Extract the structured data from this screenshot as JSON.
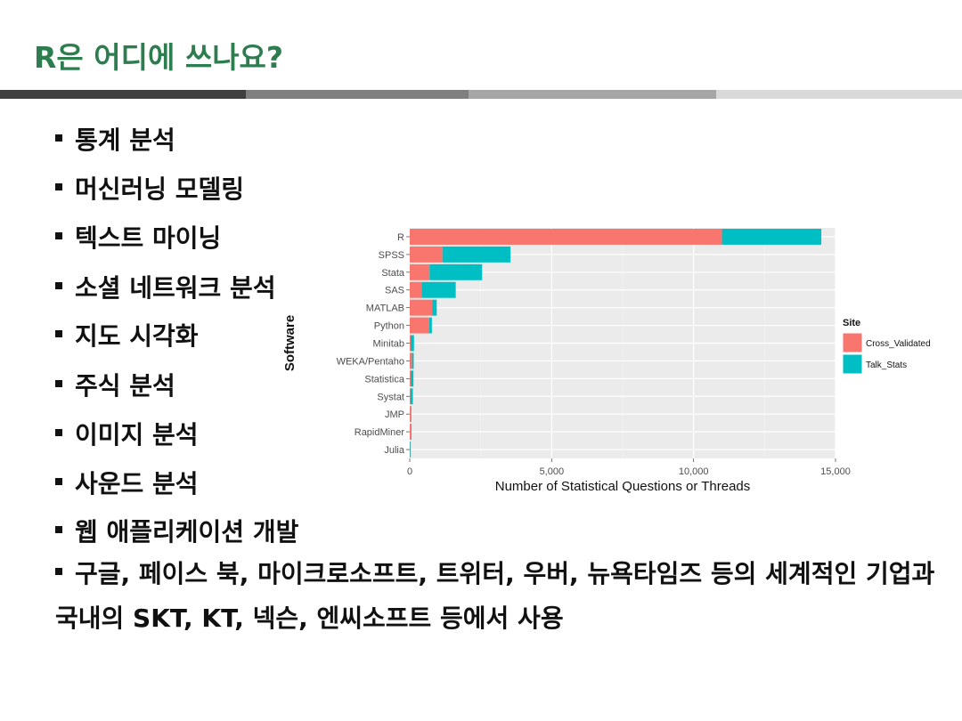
{
  "slide": {
    "title": "R은 어디에 쓰나요?",
    "bullets": [
      "통계 분석",
      "머신러닝 모델링",
      "텍스트 마이닝",
      "소셜 네트워크 분석",
      "지도 시각화",
      "주식 분석",
      "이미지 분석",
      "사운드 분석",
      "웹 애플리케이션 개발",
      "구글, 페이스 북, 마이크로소프트, 트위터, 우버, 뉴욕타임즈 등의 세계적인 기업과 국내의 SKT, KT, 넥슨, 엔씨소프트 등에서 사용"
    ],
    "divider_colors": [
      "#3f3f3f",
      "#7f7f7f",
      "#a6a6a6",
      "#d9d9d9"
    ]
  },
  "chart_data": {
    "type": "bar",
    "orientation": "horizontal",
    "stacked": true,
    "categories": [
      "R",
      "SPSS",
      "Stata",
      "SAS",
      "MATLAB",
      "Python",
      "Minitab",
      "WEKA/Pentaho",
      "Statistica",
      "Systat",
      "JMP",
      "RapidMiner",
      "Julia"
    ],
    "series": [
      {
        "name": "Cross_Validated",
        "color": "#f8766d",
        "values": [
          11000,
          1150,
          700,
          420,
          800,
          680,
          30,
          80,
          30,
          20,
          30,
          40,
          10
        ]
      },
      {
        "name": "Talk_Stats",
        "color": "#00bfc4",
        "values": [
          3500,
          2400,
          1850,
          1200,
          150,
          100,
          120,
          60,
          100,
          90,
          20,
          10,
          5
        ]
      }
    ],
    "xlabel": "Number of Statistical Questions or Threads",
    "ylabel": "Software",
    "xlim": [
      0,
      15000
    ],
    "xticks": [
      0,
      5000,
      10000,
      15000
    ],
    "xtick_labels": [
      "0",
      "5,000",
      "10,000",
      "15,000"
    ],
    "legend_title": "Site",
    "legend_placement": "right",
    "grid": true,
    "panel_background": "#ebebeb"
  }
}
